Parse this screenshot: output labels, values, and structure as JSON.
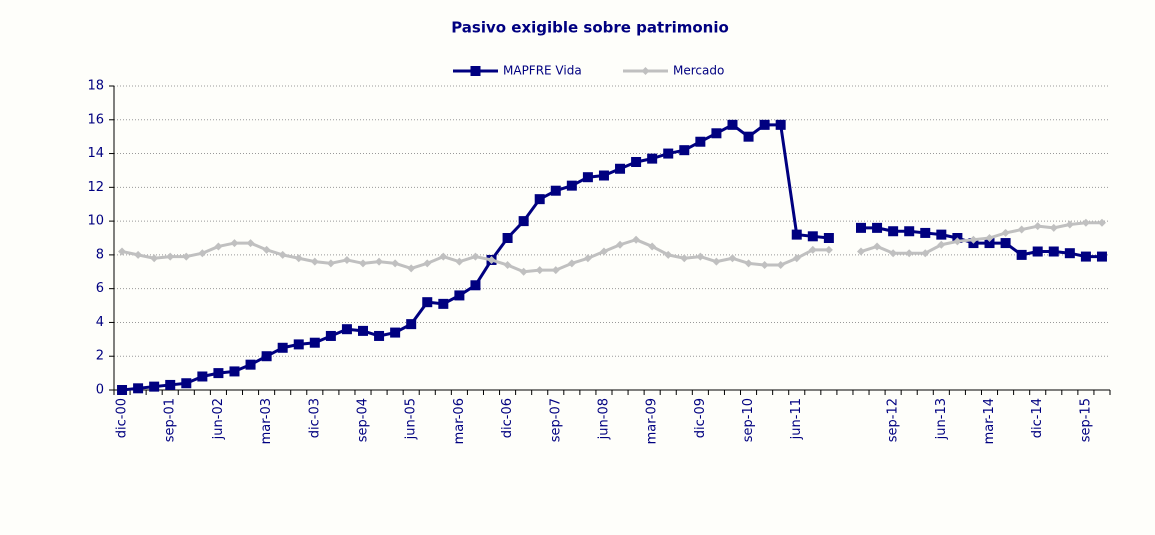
{
  "chart_data": {
    "type": "line",
    "title": "Pasivo exigible sobre patrimonio",
    "categories": [
      "dic-00",
      null,
      null,
      "sep-01",
      null,
      null,
      "jun-02",
      null,
      null,
      "mar-03",
      null,
      null,
      "dic-03",
      null,
      null,
      "sep-04",
      null,
      null,
      "jun-05",
      null,
      null,
      "mar-06",
      null,
      null,
      "dic-06",
      null,
      null,
      "sep-07",
      null,
      null,
      "jun-08",
      null,
      null,
      "mar-09",
      null,
      null,
      "dic-09",
      null,
      null,
      "sep-10",
      null,
      null,
      "jun-11",
      null,
      null,
      null,
      null,
      null,
      "sep-12",
      null,
      null,
      "jun-13",
      null,
      null,
      "mar-14",
      null,
      null,
      "dic-14",
      null,
      null,
      "sep-15",
      null
    ],
    "series": [
      {
        "name": "MAPFRE Vida",
        "color": "#000080",
        "values": [
          0,
          0.1,
          0.2,
          0.3,
          0.4,
          0.8,
          1.0,
          1.1,
          1.5,
          2.0,
          2.5,
          2.7,
          2.8,
          3.2,
          3.6,
          3.5,
          3.2,
          3.4,
          3.9,
          5.2,
          5.1,
          5.6,
          6.2,
          7.7,
          9.0,
          10.0,
          11.3,
          11.8,
          12.1,
          12.6,
          12.7,
          13.1,
          13.5,
          13.7,
          14.0,
          14.2,
          14.7,
          15.2,
          15.7,
          15.0,
          15.7,
          15.7,
          9.2,
          9.1,
          9.0,
          null,
          9.6,
          9.6,
          9.4,
          9.4,
          9.3,
          9.2,
          9.0,
          8.7,
          8.7,
          8.7,
          8.0,
          8.2,
          8.2,
          8.1,
          7.9,
          7.9
        ]
      },
      {
        "name": "Mercado",
        "color": "#c0c0c0",
        "values": [
          8.2,
          8.0,
          7.8,
          7.9,
          7.9,
          8.1,
          8.5,
          8.7,
          8.7,
          8.3,
          8.0,
          7.8,
          7.6,
          7.5,
          7.7,
          7.5,
          7.6,
          7.5,
          7.2,
          7.5,
          7.9,
          7.6,
          7.9,
          7.7,
          7.4,
          7.0,
          7.1,
          7.1,
          7.5,
          7.8,
          8.2,
          8.6,
          8.9,
          8.5,
          8.0,
          7.8,
          7.9,
          7.6,
          7.8,
          7.5,
          7.4,
          7.4,
          7.8,
          8.3,
          8.3,
          null,
          8.2,
          8.5,
          8.1,
          8.1,
          8.1,
          8.6,
          8.8,
          8.9,
          9.0,
          9.3,
          9.5,
          9.7,
          9.6,
          9.8,
          9.9,
          9.9
        ]
      }
    ],
    "ylim": [
      0,
      18
    ],
    "yticks": [
      0,
      2,
      4,
      6,
      8,
      10,
      12,
      14,
      16,
      18
    ],
    "grid": true,
    "legend": "top"
  }
}
